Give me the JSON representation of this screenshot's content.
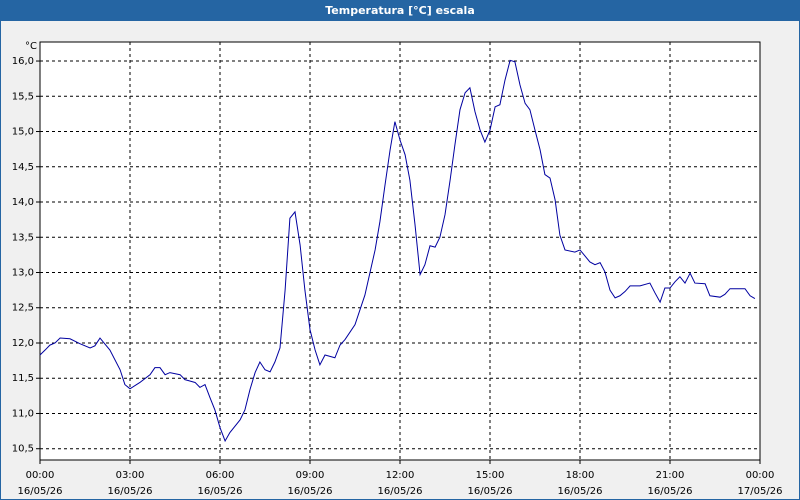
{
  "chart_data": {
    "type": "line",
    "title": "Temperatura [°C] escala",
    "y_unit": "°C",
    "x": [
      0,
      0.17,
      0.33,
      0.5,
      0.67,
      1.0,
      1.33,
      1.67,
      1.83,
      2.0,
      2.33,
      2.67,
      2.83,
      3.0,
      3.33,
      3.67,
      3.83,
      4.0,
      4.17,
      4.33,
      4.67,
      4.83,
      5.17,
      5.33,
      5.5,
      5.67,
      5.83,
      6.0,
      6.17,
      6.33,
      6.67,
      6.83,
      7.0,
      7.17,
      7.33,
      7.5,
      7.67,
      7.83,
      8.0,
      8.17,
      8.33,
      8.5,
      8.67,
      8.83,
      9.0,
      9.17,
      9.33,
      9.5,
      9.83,
      10.0,
      10.17,
      10.5,
      10.83,
      11.17,
      11.33,
      11.5,
      11.67,
      11.83,
      12.0,
      12.17,
      12.33,
      12.5,
      12.67,
      12.83,
      13.0,
      13.17,
      13.33,
      13.5,
      13.67,
      13.83,
      14.0,
      14.17,
      14.33,
      14.5,
      14.67,
      14.83,
      15.0,
      15.17,
      15.33,
      15.5,
      15.67,
      15.83,
      16.0,
      16.17,
      16.33,
      16.5,
      16.67,
      16.83,
      17.0,
      17.17,
      17.33,
      17.5,
      17.83,
      18.0,
      18.33,
      18.5,
      18.67,
      18.83,
      19.0,
      19.17,
      19.33,
      19.5,
      19.67,
      20.0,
      20.33,
      20.5,
      20.67,
      20.83,
      21.0,
      21.17,
      21.33,
      21.5,
      21.67,
      21.83,
      22.17,
      22.33,
      22.67,
      22.83,
      23.0,
      23.5,
      23.67,
      23.83
    ],
    "series": [
      {
        "name": "Temperatura",
        "color": "#0000a0",
        "values": [
          11.83,
          11.9,
          11.97,
          12.0,
          12.07,
          12.06,
          11.99,
          11.93,
          11.96,
          12.07,
          11.9,
          11.62,
          11.41,
          11.35,
          11.44,
          11.55,
          11.65,
          11.65,
          11.55,
          11.58,
          11.55,
          11.48,
          11.44,
          11.37,
          11.41,
          11.22,
          11.05,
          10.8,
          10.61,
          10.73,
          10.91,
          11.05,
          11.34,
          11.58,
          11.73,
          11.62,
          11.59,
          11.73,
          11.93,
          12.75,
          13.77,
          13.86,
          13.39,
          12.75,
          12.19,
          11.9,
          11.69,
          11.83,
          11.79,
          11.97,
          12.05,
          12.26,
          12.68,
          13.32,
          13.72,
          14.24,
          14.74,
          15.14,
          14.88,
          14.67,
          14.31,
          13.68,
          12.97,
          13.11,
          13.38,
          13.36,
          13.5,
          13.82,
          14.31,
          14.81,
          15.31,
          15.55,
          15.62,
          15.28,
          15.02,
          14.85,
          15.02,
          15.35,
          15.38,
          15.73,
          16.01,
          15.99,
          15.66,
          15.4,
          15.31,
          15.02,
          14.74,
          14.39,
          14.34,
          14.03,
          13.53,
          13.32,
          13.29,
          13.32,
          13.15,
          13.11,
          13.14,
          13.01,
          12.75,
          12.64,
          12.67,
          12.73,
          12.81,
          12.81,
          12.85,
          12.71,
          12.58,
          12.78,
          12.78,
          12.87,
          12.94,
          12.85,
          12.99,
          12.85,
          12.84,
          12.67,
          12.65,
          12.69,
          12.77,
          12.77,
          12.67,
          12.63
        ]
      }
    ],
    "xlim": [
      0,
      24
    ],
    "xticks": [
      {
        "value": 0,
        "label": [
          "00:00",
          "16/05/26"
        ]
      },
      {
        "value": 3,
        "label": [
          "03:00",
          "16/05/26"
        ]
      },
      {
        "value": 6,
        "label": [
          "06:00",
          "16/05/26"
        ]
      },
      {
        "value": 9,
        "label": [
          "09:00",
          "16/05/26"
        ]
      },
      {
        "value": 12,
        "label": [
          "12:00",
          "16/05/26"
        ]
      },
      {
        "value": 15,
        "label": [
          "15:00",
          "16/05/26"
        ]
      },
      {
        "value": 18,
        "label": [
          "18:00",
          "16/05/26"
        ]
      },
      {
        "value": 21,
        "label": [
          "21:00",
          "16/05/26"
        ]
      },
      {
        "value": 24,
        "label": [
          "00:00",
          "17/05/26"
        ]
      }
    ],
    "ylim": [
      10.34,
      16.27
    ],
    "yticks": [
      {
        "value": 10.5,
        "label": "10,5"
      },
      {
        "value": 11,
        "label": "11,0"
      },
      {
        "value": 11.5,
        "label": "11,5"
      },
      {
        "value": 12,
        "label": "12,0"
      },
      {
        "value": 12.5,
        "label": "12,5"
      },
      {
        "value": 13,
        "label": "13,0"
      },
      {
        "value": 13.5,
        "label": "13,5"
      },
      {
        "value": 14,
        "label": "14,0"
      },
      {
        "value": 14.5,
        "label": "14,5"
      },
      {
        "value": 15,
        "label": "15,0"
      },
      {
        "value": 15.5,
        "label": "15,5"
      },
      {
        "value": 16,
        "label": "16,0"
      }
    ],
    "grid": true
  }
}
